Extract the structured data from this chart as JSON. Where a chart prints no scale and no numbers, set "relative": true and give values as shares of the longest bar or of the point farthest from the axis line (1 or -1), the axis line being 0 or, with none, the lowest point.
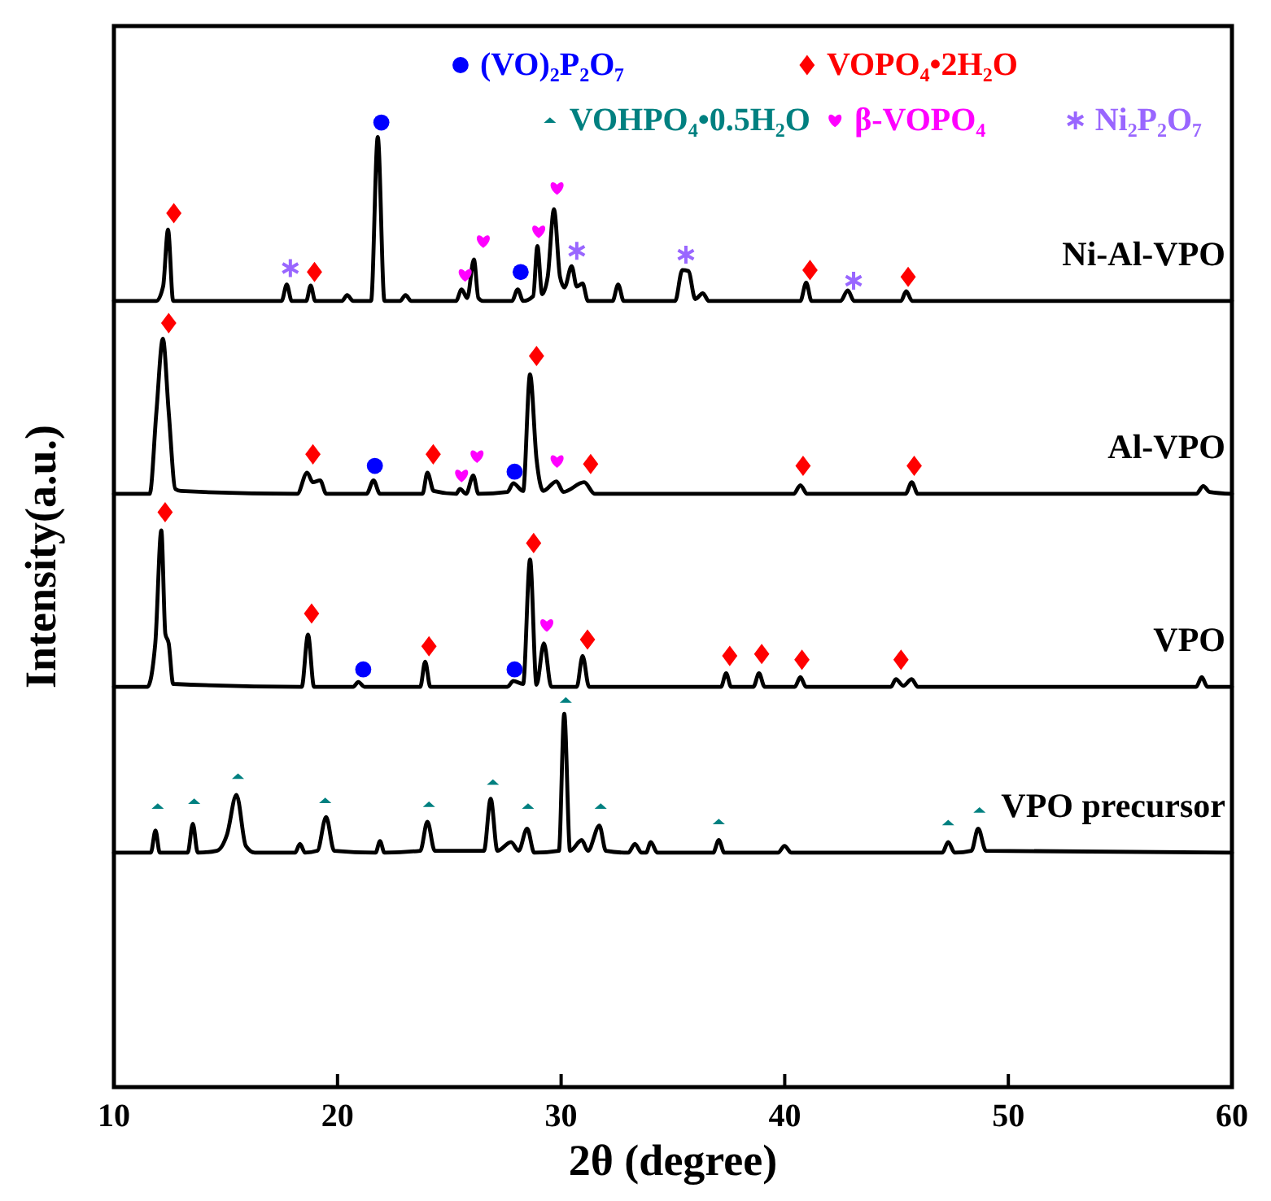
{
  "chart_data": {
    "type": "line",
    "relative": true,
    "xlabel": "2θ (degree)",
    "ylabel": "Intensity(a.u.)",
    "xlim": [
      10,
      60
    ],
    "xticks": [
      10,
      20,
      30,
      40,
      50,
      60
    ],
    "grid": false,
    "legend": "top",
    "line_style": "solid",
    "series": [
      {
        "name": "Ni-Al-VPO",
        "color": "#000000",
        "marker": "none",
        "x": [
          10,
          11.9,
          12.2,
          12.42,
          12.65,
          13.0,
          17.5,
          17.73,
          17.95,
          18.6,
          18.8,
          19.0,
          20.2,
          20.43,
          20.7,
          21.5,
          21.8,
          22.1,
          22.8,
          23.04,
          23.3,
          25.3,
          25.55,
          25.8,
          26.1,
          26.3,
          26.5,
          27.8,
          28.06,
          28.3,
          28.75,
          28.94,
          29.15,
          29.4,
          29.68,
          29.95,
          30.15,
          30.47,
          30.7,
          30.96,
          31.2,
          32.3,
          32.55,
          32.8,
          35.1,
          35.42,
          35.69,
          36.0,
          36.34,
          36.6,
          40.7,
          40.96,
          41.2,
          42.5,
          42.82,
          43.1,
          45.2,
          45.43,
          45.7,
          60
        ],
        "values": [
          0.815,
          0.815,
          0.83,
          0.889,
          0.815,
          0.815,
          0.815,
          0.832,
          0.815,
          0.815,
          0.831,
          0.815,
          0.815,
          0.821,
          0.815,
          0.815,
          0.985,
          0.815,
          0.815,
          0.821,
          0.815,
          0.815,
          0.827,
          0.818,
          0.858,
          0.818,
          0.815,
          0.815,
          0.827,
          0.815,
          0.82,
          0.872,
          0.822,
          0.84,
          0.91,
          0.84,
          0.829,
          0.851,
          0.83,
          0.833,
          0.815,
          0.815,
          0.832,
          0.815,
          0.815,
          0.847,
          0.846,
          0.817,
          0.823,
          0.815,
          0.815,
          0.834,
          0.815,
          0.815,
          0.826,
          0.815,
          0.815,
          0.825,
          0.815,
          0.815
        ]
      },
      {
        "name": "Al-VPO",
        "color": "#000000",
        "marker": "none",
        "x": [
          10,
          11.6,
          11.9,
          12.19,
          12.45,
          12.75,
          13.0,
          18.2,
          18.64,
          18.9,
          19.22,
          19.5,
          21.3,
          21.61,
          21.9,
          23.8,
          24.02,
          24.3,
          25.3,
          25.48,
          25.75,
          26.07,
          26.3,
          27.6,
          27.86,
          28.3,
          28.61,
          28.9,
          29.2,
          29.79,
          30.1,
          31.03,
          31.5,
          40.4,
          40.7,
          41.0,
          45.4,
          45.68,
          45.95,
          58.4,
          58.72,
          59.0,
          60
        ],
        "values": [
          0.615,
          0.615,
          0.7,
          0.776,
          0.7,
          0.62,
          0.618,
          0.615,
          0.637,
          0.627,
          0.629,
          0.615,
          0.615,
          0.629,
          0.615,
          0.615,
          0.637,
          0.618,
          0.615,
          0.62,
          0.615,
          0.634,
          0.615,
          0.617,
          0.626,
          0.618,
          0.739,
          0.651,
          0.618,
          0.628,
          0.617,
          0.627,
          0.615,
          0.615,
          0.624,
          0.615,
          0.615,
          0.627,
          0.615,
          0.615,
          0.623,
          0.617,
          0.615
        ]
      },
      {
        "name": "VPO",
        "color": "#000000",
        "marker": "none",
        "x": [
          10,
          11.5,
          11.85,
          12.12,
          12.3,
          12.45,
          12.65,
          18.4,
          18.68,
          18.95,
          20.7,
          20.93,
          21.2,
          23.7,
          23.92,
          24.15,
          27.6,
          27.86,
          28.3,
          28.61,
          28.9,
          29.23,
          29.56,
          30.7,
          30.96,
          31.25,
          37.15,
          37.38,
          37.6,
          38.6,
          38.85,
          39.1,
          40.45,
          40.7,
          40.95,
          44.75,
          44.97,
          45.3,
          45.68,
          45.95,
          58.4,
          58.65,
          58.9,
          60
        ],
        "values": [
          0.415,
          0.415,
          0.46,
          0.577,
          0.47,
          0.46,
          0.418,
          0.415,
          0.469,
          0.415,
          0.415,
          0.42,
          0.415,
          0.415,
          0.441,
          0.415,
          0.415,
          0.421,
          0.418,
          0.547,
          0.417,
          0.46,
          0.415,
          0.415,
          0.447,
          0.415,
          0.415,
          0.429,
          0.415,
          0.415,
          0.429,
          0.415,
          0.415,
          0.425,
          0.415,
          0.415,
          0.423,
          0.416,
          0.423,
          0.415,
          0.415,
          0.425,
          0.415,
          0.415
        ]
      },
      {
        "name": "VPO precursor",
        "color": "#000000",
        "marker": "none",
        "x": [
          10,
          11.65,
          11.86,
          12.05,
          13.3,
          13.53,
          13.75,
          14.6,
          15.06,
          15.48,
          15.9,
          16.3,
          18.1,
          18.32,
          18.55,
          19.1,
          19.49,
          19.85,
          21.7,
          21.9,
          22.1,
          23.7,
          24.02,
          24.35,
          26.55,
          26.85,
          27.15,
          27.76,
          28.1,
          28.48,
          28.8,
          29.9,
          30.14,
          30.4,
          30.92,
          31.2,
          31.71,
          32.0,
          33.0,
          33.3,
          33.6,
          33.8,
          34.01,
          34.3,
          36.8,
          37.05,
          37.3,
          39.7,
          39.99,
          40.3,
          47.05,
          47.31,
          47.6,
          48.35,
          48.65,
          49.0,
          60
        ],
        "values": [
          0.243,
          0.243,
          0.266,
          0.243,
          0.243,
          0.273,
          0.243,
          0.245,
          0.262,
          0.303,
          0.25,
          0.243,
          0.243,
          0.252,
          0.243,
          0.245,
          0.28,
          0.245,
          0.243,
          0.255,
          0.243,
          0.245,
          0.275,
          0.245,
          0.245,
          0.299,
          0.245,
          0.254,
          0.245,
          0.268,
          0.243,
          0.245,
          0.387,
          0.245,
          0.256,
          0.245,
          0.271,
          0.245,
          0.243,
          0.252,
          0.243,
          0.243,
          0.254,
          0.243,
          0.243,
          0.256,
          0.243,
          0.243,
          0.25,
          0.243,
          0.243,
          0.254,
          0.243,
          0.245,
          0.268,
          0.245,
          0.243
        ]
      },
      {
        "name": "(VO)₂P₂O₇",
        "color": "#0000ff",
        "type": "scatter",
        "marker": "circle",
        "x": [
          21.96,
          28.19,
          21.67,
          27.92,
          21.15,
          27.92
        ],
        "values": [
          1.0,
          0.845,
          0.644,
          0.638,
          0.433,
          0.433
        ]
      },
      {
        "name": "VOPO₄•2H₂O",
        "color": "#ff0000",
        "type": "scatter",
        "marker": "diamond",
        "x": [
          12.68,
          18.97,
          41.13,
          45.52,
          12.45,
          18.9,
          24.28,
          28.9,
          31.32,
          40.82,
          45.79,
          12.29,
          18.84,
          24.09,
          28.77,
          31.18,
          37.54,
          38.97,
          40.77,
          45.2
        ],
        "values": [
          0.906,
          0.845,
          0.847,
          0.84,
          0.792,
          0.656,
          0.656,
          0.758,
          0.646,
          0.644,
          0.644,
          0.596,
          0.491,
          0.457,
          0.564,
          0.464,
          0.447,
          0.449,
          0.443,
          0.443
        ]
      },
      {
        "name": "VOHPO₄•0.5H₂O",
        "color": "#008080",
        "type": "scatter",
        "marker": "triangle",
        "x": [
          11.96,
          13.59,
          15.55,
          19.45,
          24.09,
          26.95,
          28.52,
          30.21,
          31.77,
          37.05,
          47.31,
          48.71
        ],
        "values": [
          0.291,
          0.296,
          0.322,
          0.297,
          0.293,
          0.316,
          0.291,
          0.401,
          0.291,
          0.275,
          0.274,
          0.287
        ]
      },
      {
        "name": "β-VOPO₄",
        "color": "#ff00ff",
        "type": "scatter",
        "x": [
          25.71,
          26.52,
          29.0,
          29.82,
          25.55,
          26.24,
          29.82,
          29.36
        ],
        "values": [
          0.842,
          0.877,
          0.887,
          0.932,
          0.634,
          0.654,
          0.649,
          0.479
        ]
      },
      {
        "name": "Ni₂P₂O₇",
        "color": "#9966ff",
        "type": "scatter",
        "marker": "cross",
        "x": [
          17.89,
          30.7,
          35.58,
          43.08
        ],
        "values": [
          0.849,
          0.867,
          0.863,
          0.836
        ]
      }
    ]
  }
}
